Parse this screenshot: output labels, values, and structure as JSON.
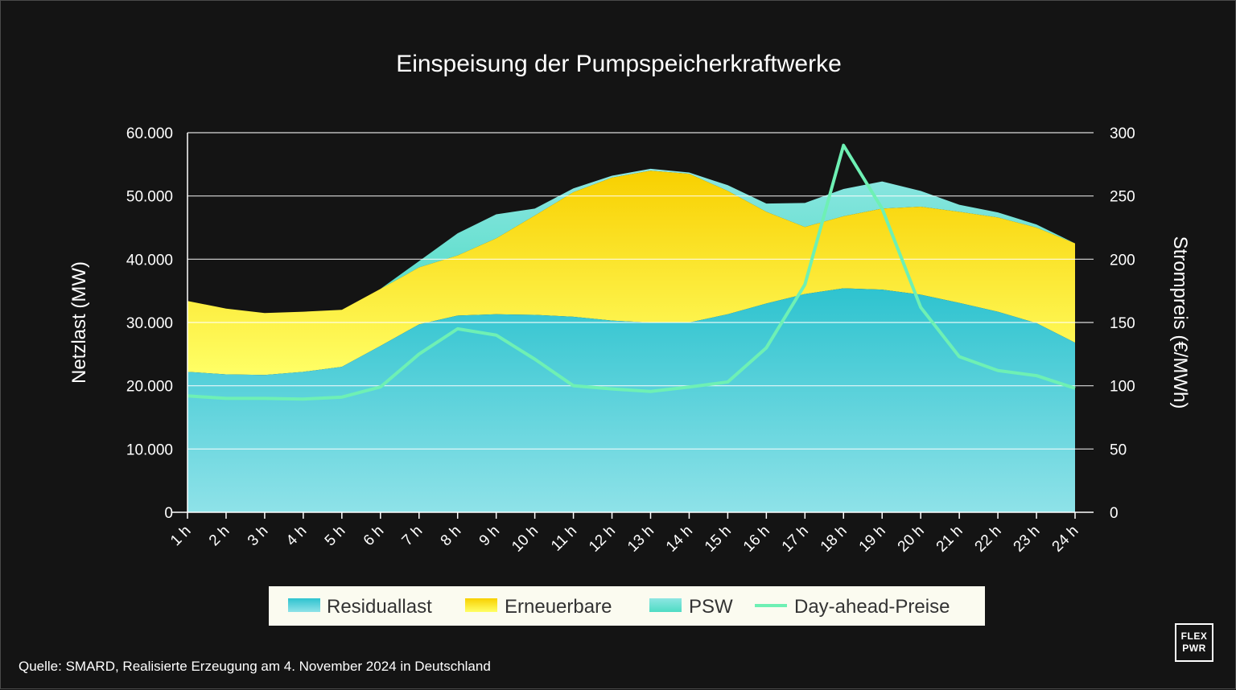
{
  "chart_data": {
    "type": "area",
    "title": "Einspeisung der Pumpspeicherkraftwerke",
    "ylabel_left": "Netzlast (MW)",
    "ylabel_right": "Strompreis (€/MWh)",
    "ylim_left": [
      0,
      60000
    ],
    "ylim_right": [
      0,
      300
    ],
    "yticks_left": [
      "0",
      "10.000",
      "20.000",
      "30.000",
      "40.000",
      "50.000",
      "60.000"
    ],
    "yticks_right": [
      "0",
      "50",
      "100",
      "150",
      "200",
      "250",
      "300"
    ],
    "categories": [
      "1 h",
      "2 h",
      "3 h",
      "4 h",
      "5 h",
      "6 h",
      "7 h",
      "8 h",
      "9 h",
      "10 h",
      "11 h",
      "12 h",
      "13 h",
      "14 h",
      "15 h",
      "16 h",
      "17 h",
      "18 h",
      "19 h",
      "20 h",
      "21 h",
      "22 h",
      "23 h",
      "24 h"
    ],
    "series": [
      {
        "name": "Residuallast",
        "type": "area",
        "axis": "left",
        "color": "#3ec6d4",
        "values": [
          22200,
          21800,
          21700,
          22200,
          23000,
          26300,
          29700,
          31100,
          31300,
          31200,
          30900,
          30300,
          30000,
          30000,
          31300,
          33000,
          34500,
          35400,
          35200,
          34400,
          33100,
          31700,
          29900,
          26800
        ]
      },
      {
        "name": "Erneuerbare",
        "type": "area",
        "axis": "left",
        "color": "#f5d400",
        "values": [
          11200,
          10400,
          9800,
          9500,
          9000,
          9000,
          9000,
          9500,
          12000,
          15700,
          19700,
          22600,
          24000,
          23500,
          19500,
          14500,
          10600,
          11400,
          12800,
          13900,
          14400,
          14900,
          15100,
          15700
        ]
      },
      {
        "name": "PSW",
        "type": "area",
        "axis": "left",
        "color": "#5ee3cf",
        "values": [
          0,
          0,
          0,
          0,
          0,
          0,
          1000,
          3500,
          3800,
          1100,
          600,
          300,
          300,
          200,
          900,
          1300,
          3800,
          4300,
          4300,
          2500,
          1100,
          800,
          500,
          0
        ]
      },
      {
        "name": "Day-ahead-Preise",
        "type": "line",
        "axis": "right",
        "color": "#6ef0b4",
        "values": [
          92,
          90,
          90,
          89.5,
          91,
          99,
          125,
          145,
          140,
          121,
          100,
          97.5,
          95.5,
          99,
          103,
          130,
          180,
          290,
          240,
          162,
          123,
          112,
          108,
          98
        ]
      }
    ],
    "source": "Quelle: SMARD, Realisierte Erzeugung am 4. November 2024 in Deutschland",
    "logo_line1": "FLEX",
    "logo_line2": "PWR"
  }
}
